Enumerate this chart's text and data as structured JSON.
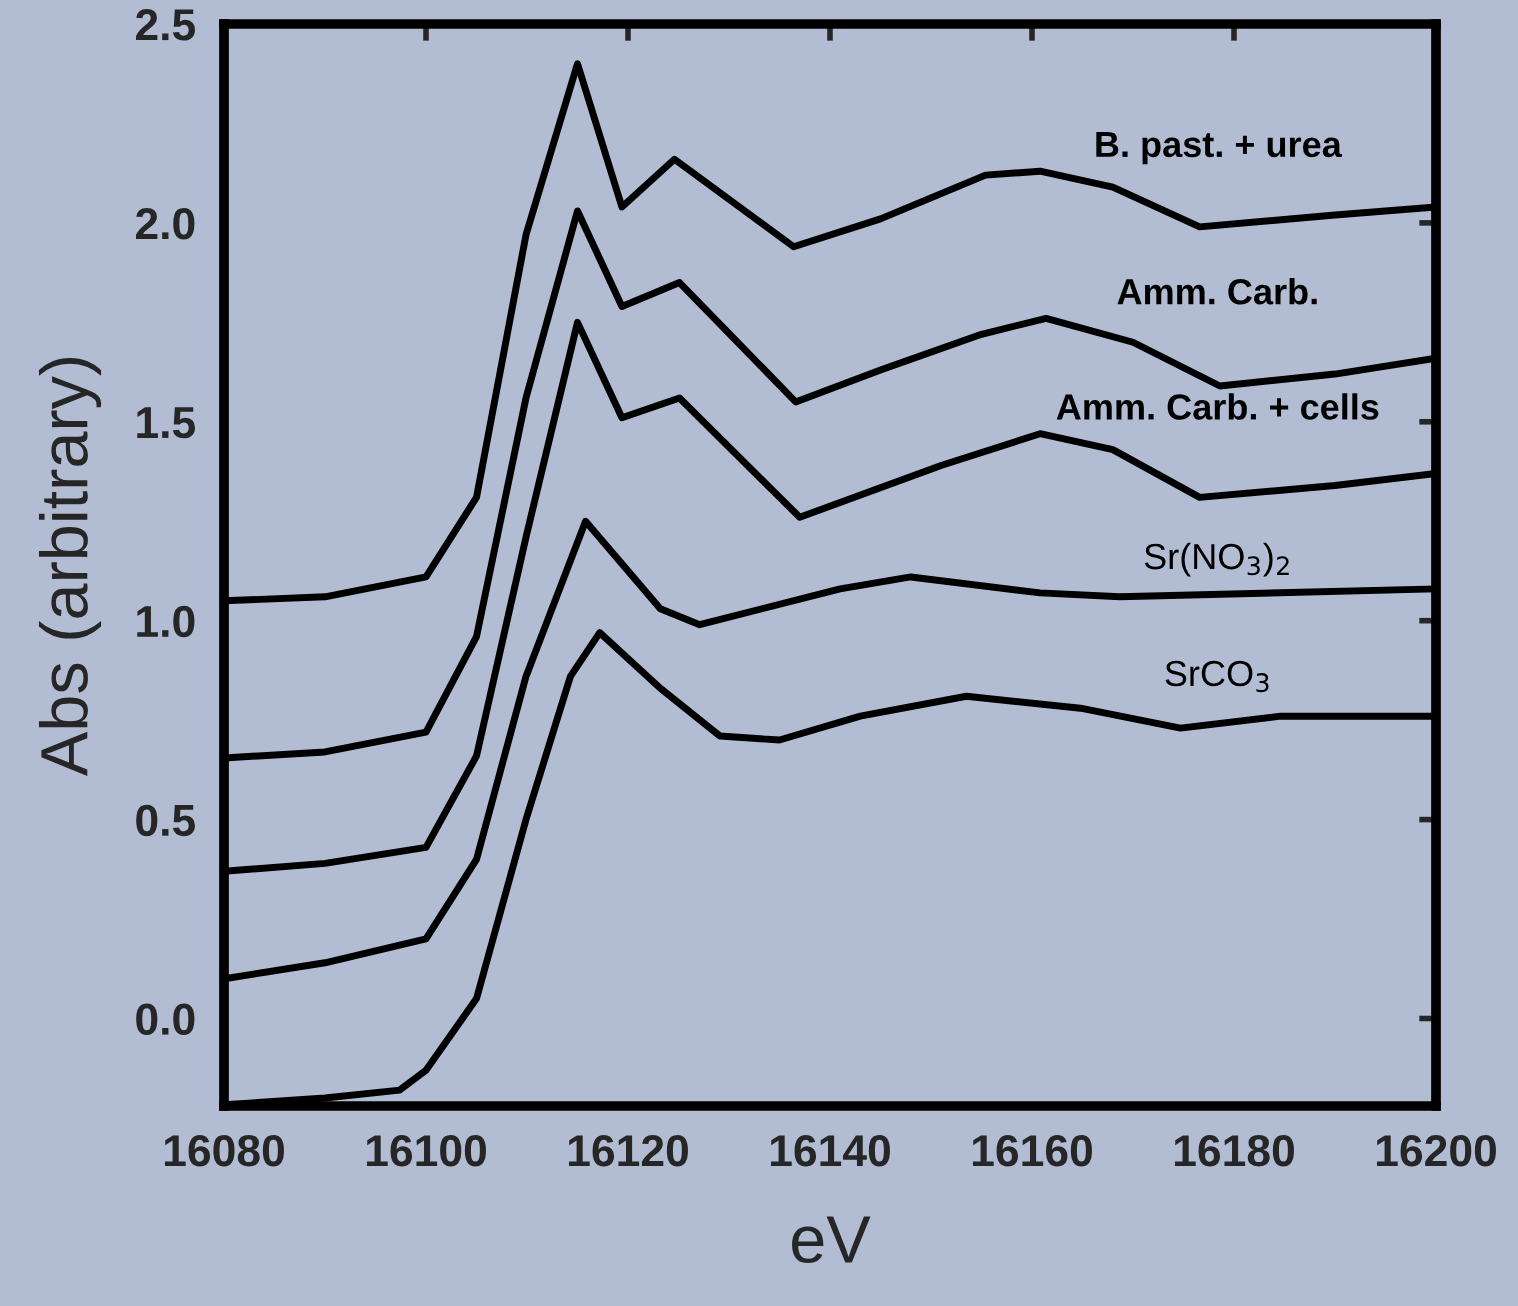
{
  "chart_data": {
    "type": "line",
    "xlabel": "eV",
    "ylabel": "Abs (arbitrary)",
    "xlim": [
      16080,
      16200
    ],
    "ylim": [
      -0.22,
      2.5
    ],
    "xticks": [
      16080,
      16100,
      16120,
      16140,
      16160,
      16180,
      16200
    ],
    "yticks": [
      {
        "value": 0,
        "label": "0.0"
      },
      {
        "value": 0.5,
        "label": "0.5"
      },
      {
        "value": 1,
        "label": "1.0"
      },
      {
        "value": 1.5,
        "label": "1.5"
      },
      {
        "value": 2,
        "label": "2.0"
      },
      {
        "value": 2.5,
        "label": "2.5"
      }
    ],
    "grid": false,
    "legend": false,
    "series": [
      {
        "name": "B. past. + urea",
        "color": "#000000",
        "x": [
          16080,
          16090,
          16100,
          16105,
          16109.9,
          16115,
          16119.4,
          16124.6,
          16136.4,
          16145,
          16155.4,
          16160.8,
          16168,
          16176.6,
          16190,
          16200
        ],
        "values": [
          1.05,
          1.06,
          1.11,
          1.31,
          1.97,
          2.4,
          2.04,
          2.16,
          1.94,
          2.01,
          2.12,
          2.13,
          2.09,
          1.99,
          2.02,
          2.04
        ]
      },
      {
        "name": "Amm. Carb.",
        "color": "#000000",
        "x": [
          16080,
          16090,
          16100,
          16105,
          16109.9,
          16115,
          16119.4,
          16125.1,
          16136.6,
          16145,
          16155,
          16161.4,
          16170,
          16178.6,
          16190,
          16200
        ],
        "values": [
          0.655,
          0.67,
          0.72,
          0.96,
          1.56,
          2.03,
          1.79,
          1.85,
          1.55,
          1.63,
          1.72,
          1.76,
          1.7,
          1.59,
          1.62,
          1.66
        ]
      },
      {
        "name": "Amm. Carb. + cells",
        "color": "#000000",
        "x": [
          16080,
          16090,
          16100,
          16105,
          16109.9,
          16115,
          16119.4,
          16125.1,
          16137,
          16151,
          16160.8,
          16168,
          16176.6,
          16190,
          16200
        ],
        "values": [
          0.37,
          0.39,
          0.43,
          0.66,
          1.21,
          1.75,
          1.51,
          1.56,
          1.26,
          1.39,
          1.47,
          1.43,
          1.31,
          1.34,
          1.37
        ]
      },
      {
        "name": "Sr(NO$_{3}$)$_{2}$",
        "color": "#000000",
        "x": [
          16080,
          16090,
          16100,
          16105,
          16109.9,
          16115.8,
          16123.2,
          16127.1,
          16141,
          16148,
          16160.8,
          16168.7,
          16200
        ],
        "values": [
          0.1,
          0.14,
          0.2,
          0.4,
          0.86,
          1.25,
          1.03,
          0.99,
          1.08,
          1.11,
          1.07,
          1.06,
          1.08
        ]
      },
      {
        "name": "SrCO$_{3}$",
        "color": "#000000",
        "x": [
          16080,
          16090,
          16097.4,
          16100,
          16105,
          16109.9,
          16114.3,
          16117.2,
          16123.2,
          16129.1,
          16135,
          16143,
          16153.5,
          16164.8,
          16174.7,
          16184.6,
          16200
        ],
        "values": [
          -0.217,
          -0.2,
          -0.18,
          -0.13,
          0.05,
          0.5,
          0.86,
          0.97,
          0.83,
          0.71,
          0.7,
          0.76,
          0.81,
          0.78,
          0.73,
          0.76,
          0.76
        ]
      }
    ]
  }
}
